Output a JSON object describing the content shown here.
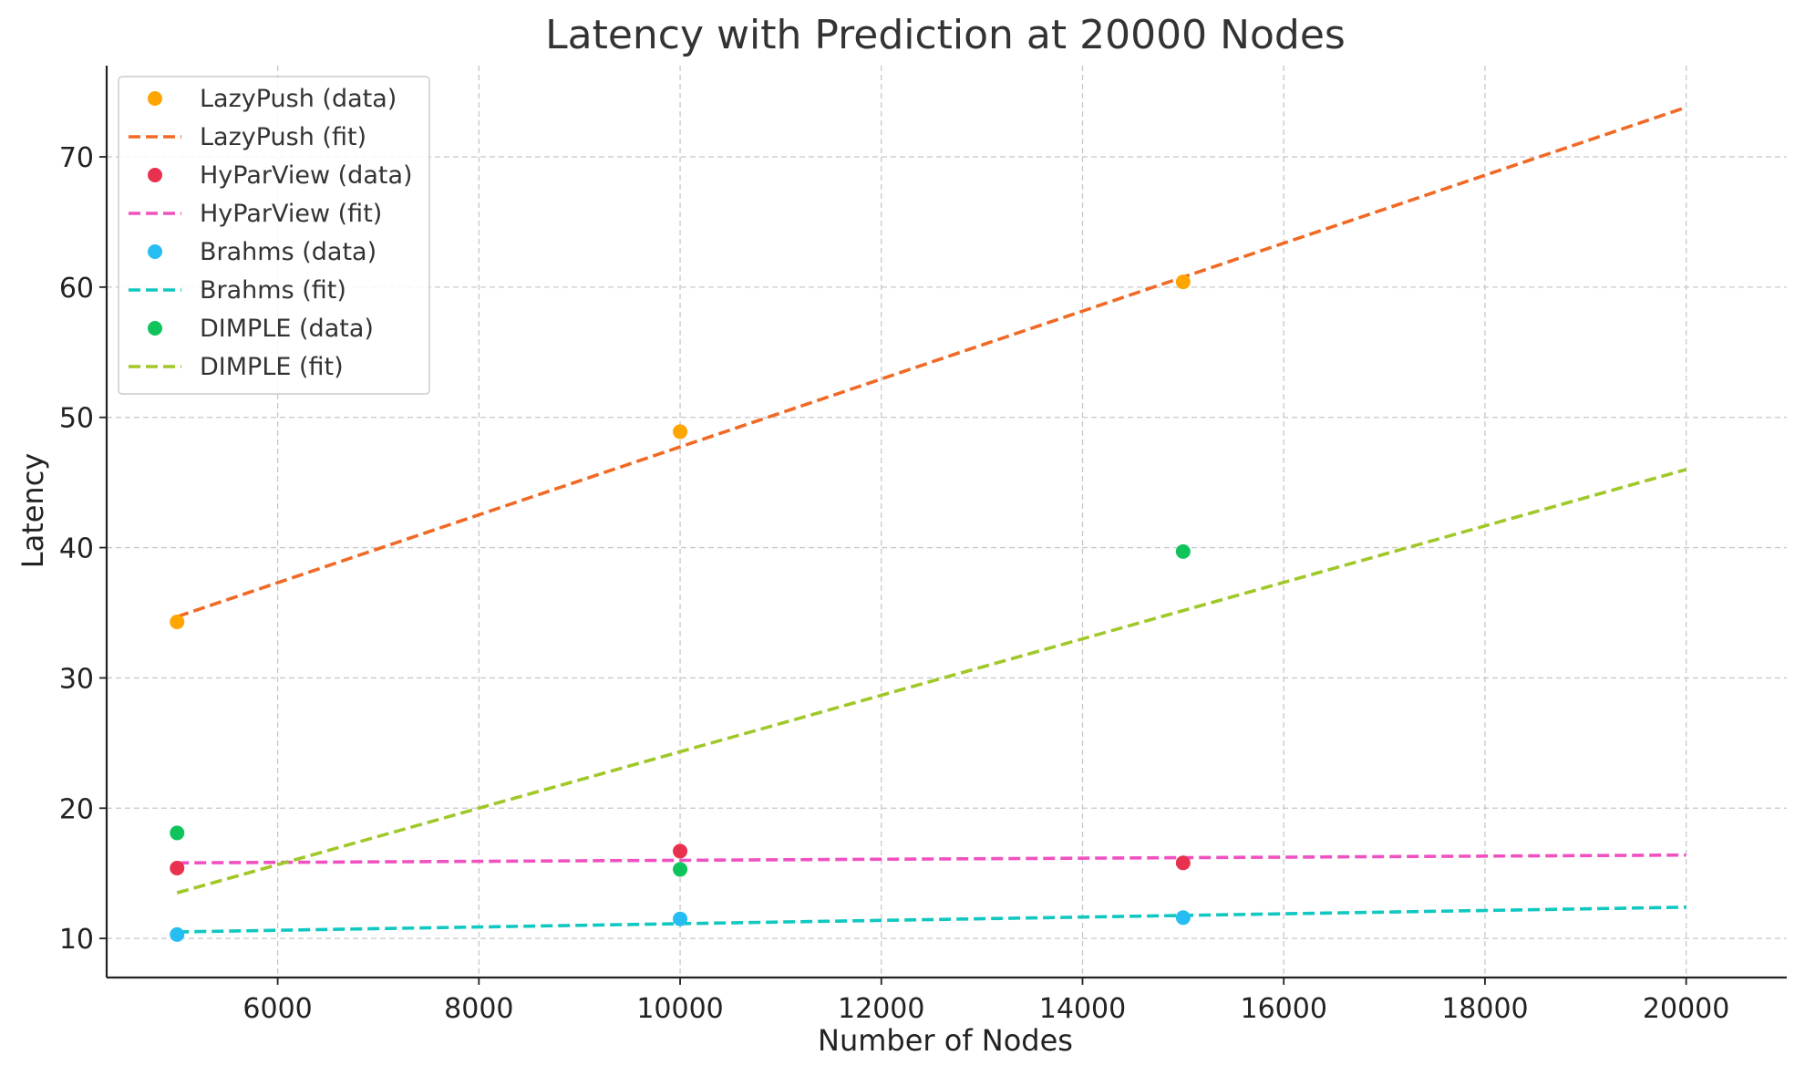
{
  "chart_data": {
    "type": "line",
    "title": "Latency with Prediction at 20000 Nodes",
    "xlabel": "Number of Nodes",
    "ylabel": "Latency",
    "xlim": [
      4300,
      21000
    ],
    "ylim": [
      7,
      77
    ],
    "xticks": [
      6000,
      8000,
      10000,
      12000,
      14000,
      16000,
      18000,
      20000
    ],
    "yticks": [
      10,
      20,
      30,
      40,
      50,
      60,
      70
    ],
    "grid": true,
    "legend_position": "top-left",
    "series": [
      {
        "name": "LazyPush (data)",
        "kind": "scatter",
        "color": "#FFA500",
        "x": [
          5000,
          10000,
          15000
        ],
        "y": [
          34.3,
          48.9,
          60.4
        ]
      },
      {
        "name": "LazyPush (fit)",
        "kind": "dashed-line",
        "color": "#F06A25",
        "x": [
          5000,
          20000
        ],
        "y": [
          34.7,
          73.8
        ]
      },
      {
        "name": "HyParView (data)",
        "kind": "scatter",
        "color": "#E8304F",
        "x": [
          5000,
          10000,
          15000
        ],
        "y": [
          15.4,
          16.7,
          15.8
        ]
      },
      {
        "name": "HyParView (fit)",
        "kind": "dashed-line",
        "color": "#F051C0",
        "x": [
          5000,
          20000
        ],
        "y": [
          15.8,
          16.4
        ]
      },
      {
        "name": "Brahms (data)",
        "kind": "scatter",
        "color": "#25BDF2",
        "x": [
          5000,
          10000,
          15000
        ],
        "y": [
          10.3,
          11.5,
          11.6
        ]
      },
      {
        "name": "Brahms (fit)",
        "kind": "dashed-line",
        "color": "#10C8C0",
        "x": [
          5000,
          20000
        ],
        "y": [
          10.5,
          12.4
        ]
      },
      {
        "name": "DIMPLE (data)",
        "kind": "scatter",
        "color": "#10C45C",
        "x": [
          5000,
          10000,
          15000
        ],
        "y": [
          18.1,
          15.3,
          39.7
        ]
      },
      {
        "name": "DIMPLE (fit)",
        "kind": "dashed-line",
        "color": "#A0C828",
        "x": [
          5000,
          20000
        ],
        "y": [
          13.5,
          46.0
        ]
      }
    ]
  }
}
